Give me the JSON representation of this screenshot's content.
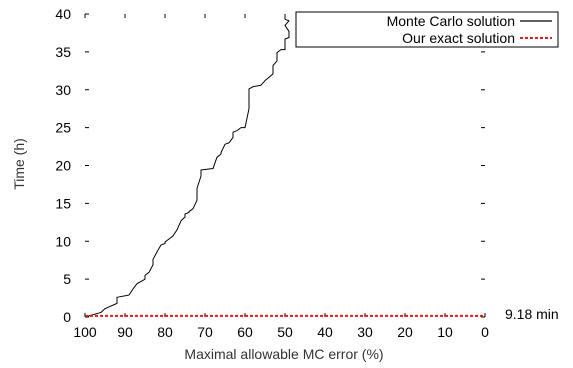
{
  "chart_data": {
    "type": "line",
    "title": "",
    "xlabel": "Maximal allowable MC error (%)",
    "ylabel": "Time (h)",
    "xlim": [
      100,
      0
    ],
    "ylim": [
      0,
      40
    ],
    "x_reversed": true,
    "grid": false,
    "legend_position": "top-right",
    "x_ticks": [
      100,
      90,
      80,
      70,
      60,
      50,
      40,
      30,
      20,
      10,
      0
    ],
    "y_ticks": [
      0,
      5,
      10,
      15,
      20,
      25,
      30,
      35,
      40
    ],
    "series": [
      {
        "name": "Monte Carlo solution",
        "color": "#000000",
        "dash": "solid",
        "x": [
          100,
          96,
          95,
          92,
          92,
          89,
          88,
          87,
          85,
          85,
          84,
          83,
          83,
          82,
          81,
          80,
          80,
          79,
          78,
          77,
          76,
          75,
          75,
          74,
          74,
          73,
          72,
          72,
          71,
          71,
          68,
          67,
          66,
          66,
          65,
          64,
          63,
          63,
          62,
          61,
          60,
          60,
          59,
          59,
          58,
          56,
          55,
          53,
          53,
          52,
          52,
          51,
          50,
          50,
          49,
          49,
          50,
          49,
          50,
          50
        ],
        "y": [
          0,
          0.6,
          1.1,
          1.8,
          2.6,
          2.9,
          3.7,
          4.4,
          5.0,
          5.5,
          5.9,
          6.9,
          7.6,
          8.6,
          9.5,
          9.7,
          9.9,
          10.3,
          10.7,
          11.5,
          12.7,
          13.2,
          13.6,
          13.8,
          13.9,
          14.3,
          15.4,
          17.0,
          18.6,
          19.4,
          19.6,
          21.1,
          21.5,
          21.7,
          22.8,
          23.0,
          23.7,
          24.4,
          24.6,
          25.0,
          25.0,
          25.0,
          27.5,
          30.1,
          30.4,
          30.6,
          31.2,
          32.1,
          33.2,
          33.8,
          34.9,
          35.3,
          35.3,
          36.7,
          36.9,
          37.7,
          38.5,
          39.1,
          39.3,
          40.0
        ]
      },
      {
        "name": "Our exact solution",
        "color": "#e41a1c",
        "dash": "dashed",
        "x": [
          100,
          0
        ],
        "y": [
          0.153,
          0.153
        ]
      }
    ],
    "annotations": [
      {
        "text": "9.18 min",
        "x": 0,
        "y": 0.153
      }
    ]
  }
}
